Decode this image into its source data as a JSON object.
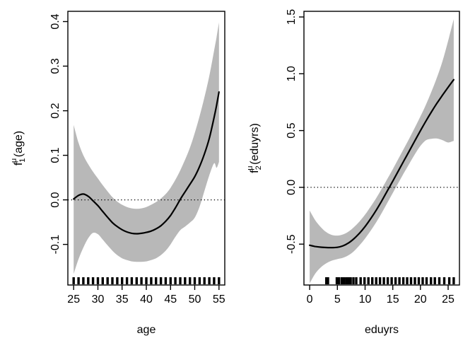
{
  "figure": {
    "background": "#ffffff",
    "band_color": "#b8b8b8",
    "curve_color": "#000000",
    "axis_color": "#000000",
    "zero_line_style": "dotted"
  },
  "chart_data": [
    {
      "type": "line",
      "title": "",
      "xlabel": "age",
      "ylabel": "f_1^μ(age)",
      "ylabel_parts": {
        "base": "f",
        "sub": "1",
        "sup": "μ",
        "arg": "(age)"
      },
      "xlim": [
        23.8,
        56.2
      ],
      "ylim": [
        -0.191,
        0.423
      ],
      "xticks": [
        25,
        30,
        35,
        40,
        45,
        50,
        55
      ],
      "yticks": [
        -0.1,
        0.0,
        0.1,
        0.2,
        0.3,
        0.4
      ],
      "ytick_labels": [
        "-0.1",
        "0.0",
        "0.1",
        "0.2",
        "0.3",
        "0.4"
      ],
      "zero_line": 0.0,
      "grid": false,
      "legend": "none",
      "x": [
        25,
        26,
        27,
        28,
        29,
        30,
        31,
        32,
        33,
        34,
        35,
        36,
        37,
        38,
        39,
        40,
        41,
        42,
        43,
        44,
        45,
        46,
        47,
        48,
        49,
        50,
        51,
        52,
        53,
        54,
        54.5,
        55
      ],
      "fit": [
        0.002,
        0.01,
        0.013,
        0.008,
        -0.002,
        -0.013,
        -0.026,
        -0.039,
        -0.051,
        -0.06,
        -0.067,
        -0.072,
        -0.075,
        -0.076,
        -0.075,
        -0.073,
        -0.07,
        -0.065,
        -0.058,
        -0.048,
        -0.035,
        -0.018,
        0.001,
        0.018,
        0.035,
        0.052,
        0.075,
        0.103,
        0.138,
        0.185,
        0.212,
        0.242
      ],
      "hi": [
        0.168,
        0.128,
        0.1,
        0.08,
        0.063,
        0.048,
        0.033,
        0.019,
        0.006,
        -0.004,
        -0.011,
        -0.016,
        -0.019,
        -0.02,
        -0.019,
        -0.016,
        -0.011,
        -0.005,
        0.003,
        0.013,
        0.027,
        0.045,
        0.066,
        0.09,
        0.117,
        0.15,
        0.188,
        0.23,
        0.278,
        0.335,
        0.365,
        0.398
      ],
      "lo": [
        -0.166,
        -0.133,
        -0.107,
        -0.086,
        -0.074,
        -0.077,
        -0.089,
        -0.102,
        -0.114,
        -0.124,
        -0.131,
        -0.135,
        -0.138,
        -0.139,
        -0.139,
        -0.138,
        -0.135,
        -0.131,
        -0.124,
        -0.114,
        -0.1,
        -0.083,
        -0.068,
        -0.06,
        -0.051,
        -0.04,
        -0.015,
        0.02,
        0.055,
        0.082,
        0.072,
        0.085
      ],
      "rug": [
        25,
        26,
        27,
        28,
        29,
        30,
        31,
        32,
        33,
        34,
        35,
        36,
        37,
        38,
        39,
        40,
        41,
        42,
        43,
        44,
        45,
        46,
        47,
        48,
        49,
        50,
        51,
        52,
        53,
        54,
        55
      ]
    },
    {
      "type": "line",
      "title": "",
      "xlabel": "eduyrs",
      "ylabel": "f_2^μ(eduyrs)",
      "ylabel_parts": {
        "base": "f",
        "sub": "2",
        "sup": "μ",
        "arg": "(eduyrs)"
      },
      "xlim": [
        -1.04,
        27.04
      ],
      "ylim": [
        -0.86,
        1.55
      ],
      "xticks": [
        0,
        5,
        10,
        15,
        20,
        25
      ],
      "yticks": [
        -0.5,
        0.0,
        0.5,
        1.0,
        1.5
      ],
      "ytick_labels": [
        "-0.5",
        "0.0",
        "0.5",
        "1.0",
        "1.5"
      ],
      "zero_line": 0.0,
      "grid": false,
      "legend": "none",
      "x": [
        0,
        1,
        2,
        3,
        4,
        5,
        6,
        7,
        8,
        9,
        10,
        11,
        12,
        13,
        14,
        15,
        16,
        17,
        18,
        19,
        20,
        21,
        22,
        23,
        24,
        25,
        26
      ],
      "fit": [
        -0.51,
        -0.521,
        -0.527,
        -0.53,
        -0.531,
        -0.528,
        -0.515,
        -0.49,
        -0.452,
        -0.403,
        -0.345,
        -0.277,
        -0.202,
        -0.12,
        -0.033,
        0.055,
        0.144,
        0.233,
        0.322,
        0.411,
        0.499,
        0.585,
        0.666,
        0.742,
        0.813,
        0.881,
        0.948
      ],
      "hi": [
        -0.205,
        -0.29,
        -0.35,
        -0.395,
        -0.42,
        -0.425,
        -0.415,
        -0.39,
        -0.35,
        -0.3,
        -0.24,
        -0.17,
        -0.095,
        -0.013,
        0.072,
        0.16,
        0.25,
        0.34,
        0.432,
        0.527,
        0.625,
        0.73,
        0.845,
        0.97,
        1.115,
        1.29,
        1.48
      ],
      "lo": [
        -0.845,
        -0.76,
        -0.705,
        -0.668,
        -0.645,
        -0.632,
        -0.62,
        -0.598,
        -0.562,
        -0.51,
        -0.45,
        -0.383,
        -0.308,
        -0.226,
        -0.138,
        -0.05,
        0.038,
        0.125,
        0.21,
        0.292,
        0.365,
        0.415,
        0.428,
        0.43,
        0.415,
        0.395,
        0.41
      ],
      "rug": [
        3.0,
        3.3,
        4.9,
        5.3,
        5.8,
        6.2,
        6.6,
        7.0,
        7.4,
        7.9,
        8.4,
        9.2,
        9.9,
        10.6,
        11.3,
        12.0,
        12.7,
        13.4,
        14.1,
        14.8,
        15.5,
        16.2,
        16.9,
        17.6,
        18.3,
        19.0,
        19.7,
        20.4,
        21.1,
        21.9,
        22.6,
        23.4,
        24.3,
        25.2,
        26.0
      ]
    }
  ]
}
